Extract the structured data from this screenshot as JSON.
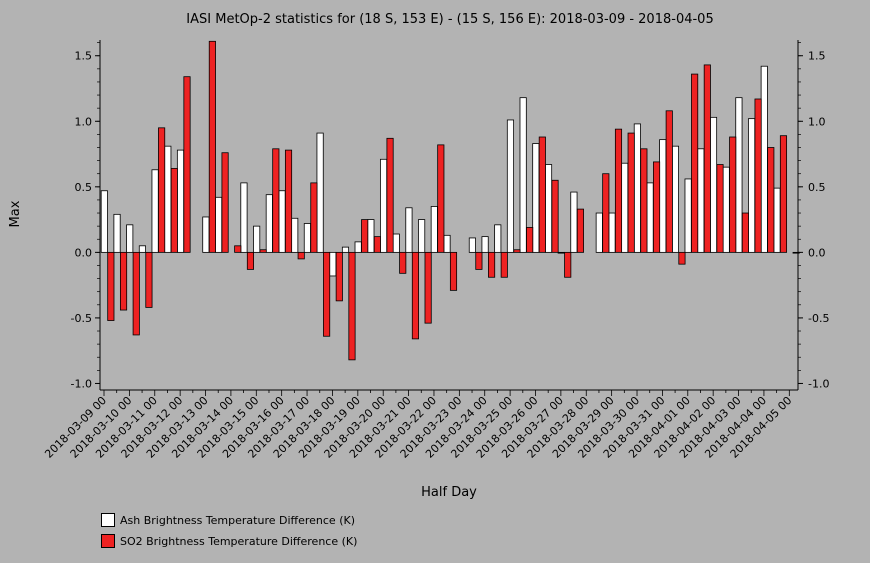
{
  "chart_data": {
    "type": "bar",
    "title": "IASI MetOp-2 statistics for (18 S, 153 E) - (15 S, 156 E): 2018-03-09 - 2018-04-05",
    "xlabel": "Half Day",
    "ylabel": "Max",
    "ylim": [
      -1.05,
      1.62
    ],
    "yticks": [
      1.5,
      1.0,
      0.5,
      0.0,
      -0.5,
      -1.0
    ],
    "ytick_labels": [
      "1.5",
      "1.0",
      "0.5",
      "0.0",
      "-0.5",
      "-1.0"
    ],
    "xtick_labels": [
      "2018-03-09 00",
      "2018-03-10 00",
      "2018-03-11 00",
      "2018-03-12 00",
      "2018-03-13 00",
      "2018-03-14 00",
      "2018-03-15 00",
      "2018-03-16 00",
      "2018-03-17 00",
      "2018-03-18 00",
      "2018-03-19 00",
      "2018-03-20 00",
      "2018-03-21 00",
      "2018-03-22 00",
      "2018-03-23 00",
      "2018-03-24 00",
      "2018-03-25 00",
      "2018-03-26 00",
      "2018-03-27 00",
      "2018-03-28 00",
      "2018-03-29 00",
      "2018-03-30 00",
      "2018-03-31 00",
      "2018-04-01 00",
      "2018-04-02 00",
      "2018-04-03 00",
      "2018-04-04 00",
      "2018-04-05 00"
    ],
    "x": [
      "2018-03-09 00",
      "2018-03-09 12",
      "2018-03-10 00",
      "2018-03-10 12",
      "2018-03-11 00",
      "2018-03-11 12",
      "2018-03-12 00",
      "2018-03-12 12",
      "2018-03-13 00",
      "2018-03-13 12",
      "2018-03-14 00",
      "2018-03-14 12",
      "2018-03-15 00",
      "2018-03-15 12",
      "2018-03-16 00",
      "2018-03-16 12",
      "2018-03-17 00",
      "2018-03-17 12",
      "2018-03-18 00",
      "2018-03-18 12",
      "2018-03-19 00",
      "2018-03-19 12",
      "2018-03-20 00",
      "2018-03-20 12",
      "2018-03-21 00",
      "2018-03-21 12",
      "2018-03-22 00",
      "2018-03-22 12",
      "2018-03-23 00",
      "2018-03-23 12",
      "2018-03-24 00",
      "2018-03-24 12",
      "2018-03-25 00",
      "2018-03-25 12",
      "2018-03-26 00",
      "2018-03-26 12",
      "2018-03-27 00",
      "2018-03-27 12",
      "2018-03-28 00",
      "2018-03-28 12",
      "2018-03-29 00",
      "2018-03-29 12",
      "2018-03-30 00",
      "2018-03-30 12",
      "2018-03-31 00",
      "2018-03-31 12",
      "2018-04-01 00",
      "2018-04-01 12",
      "2018-04-02 00",
      "2018-04-02 12",
      "2018-04-03 00",
      "2018-04-03 12",
      "2018-04-04 00",
      "2018-04-04 12",
      "2018-04-05 00"
    ],
    "series": [
      {
        "name": "Ash Brightness Temperature Difference (K)",
        "color": "#ffffff",
        "values": [
          0.47,
          0.29,
          0.21,
          0.05,
          0.63,
          0.81,
          0.78,
          null,
          0.27,
          0.42,
          null,
          0.53,
          0.2,
          0.44,
          0.47,
          0.26,
          0.22,
          0.91,
          -0.18,
          0.04,
          0.08,
          0.25,
          0.71,
          0.14,
          0.34,
          0.25,
          0.35,
          0.13,
          null,
          0.11,
          0.12,
          0.21,
          1.01,
          1.18,
          0.83,
          0.67,
          0.0,
          0.46,
          null,
          0.3,
          0.3,
          0.68,
          0.98,
          0.53,
          0.86,
          0.81,
          0.56,
          0.79,
          1.03,
          0.65,
          1.18,
          1.02,
          1.42,
          0.49,
          null
        ]
      },
      {
        "name": "SO2 Brightness Temperature Difference (K)",
        "color": "#ee2222",
        "values": [
          -0.52,
          -0.44,
          -0.63,
          -0.42,
          0.95,
          0.64,
          1.34,
          null,
          1.61,
          0.76,
          0.05,
          -0.13,
          0.02,
          0.79,
          0.78,
          -0.05,
          0.53,
          -0.64,
          -0.37,
          -0.82,
          0.25,
          0.12,
          0.87,
          -0.16,
          -0.66,
          -0.54,
          0.82,
          -0.29,
          null,
          -0.13,
          -0.19,
          -0.19,
          0.02,
          0.19,
          0.88,
          0.55,
          -0.19,
          0.33,
          null,
          0.6,
          0.94,
          0.91,
          0.79,
          0.69,
          1.08,
          -0.09,
          1.36,
          1.43,
          0.67,
          0.88,
          0.3,
          1.17,
          0.8,
          0.89,
          0.0
        ]
      }
    ],
    "legend_position": "bottom-left",
    "grid": false
  },
  "legend": {
    "items": [
      {
        "label": "Ash Brightness Temperature Difference (K)",
        "color": "#ffffff"
      },
      {
        "label": "SO2 Brightness Temperature Difference (K)",
        "color": "#ee2222"
      }
    ]
  }
}
